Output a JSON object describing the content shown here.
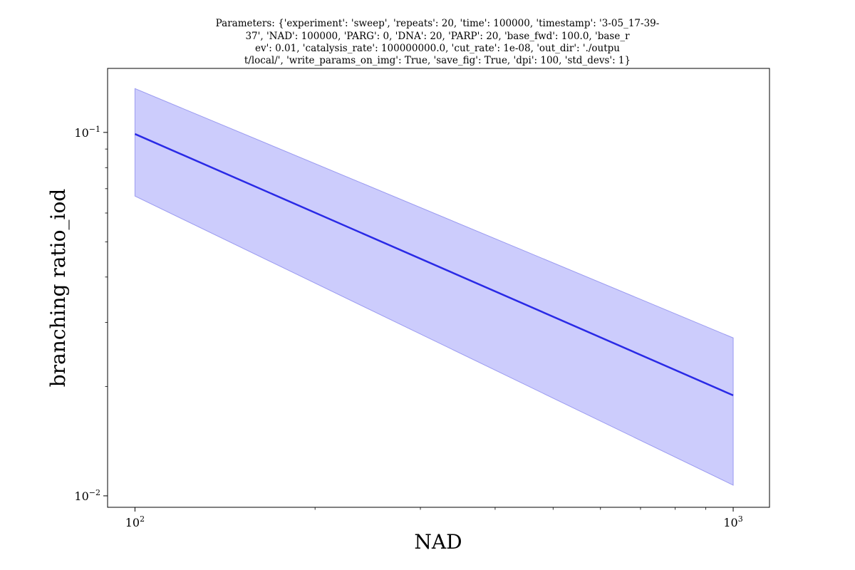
{
  "chart_data": {
    "type": "line",
    "title_lines": [
      "Parameters: {'experiment': 'sweep', 'repeats': 20, 'time': 100000, 'timestamp': '3-05_17-39-",
      "37', 'NAD': 100000, 'PARG': 0, 'DNA': 20, 'PARP': 20, 'base_fwd': 100.0, 'base_r",
      "ev': 0.01, 'catalysis_rate': 100000000.0, 'cut_rate': 1e-08, 'out_dir': './outpu",
      "t/local/', 'write_params_on_img': True, 'save_fig': True, 'dpi': 100, 'std_devs': 1}"
    ],
    "xlabel": "NAD",
    "ylabel": "branching ratio_iod",
    "xscale": "log",
    "yscale": "log",
    "xlim": [
      90,
      1150
    ],
    "ylim": [
      0.0093,
      0.15
    ],
    "x_ticks": [
      {
        "value": 100,
        "base": "10",
        "exp": "2"
      },
      {
        "value": 1000,
        "base": "10",
        "exp": "3"
      }
    ],
    "y_ticks": [
      {
        "value": 0.1,
        "base": "10",
        "exp": "−1"
      },
      {
        "value": 0.01,
        "base": "10",
        "exp": "−2"
      }
    ],
    "grid": false,
    "series": [
      {
        "x": [
          100,
          1000
        ],
        "y": [
          0.099,
          0.0189
        ],
        "lower": [
          0.0668,
          0.0107
        ],
        "upper": [
          0.132,
          0.0272
        ],
        "color": "#2a2ae6",
        "fill_color": "#ccccfc"
      }
    ]
  }
}
